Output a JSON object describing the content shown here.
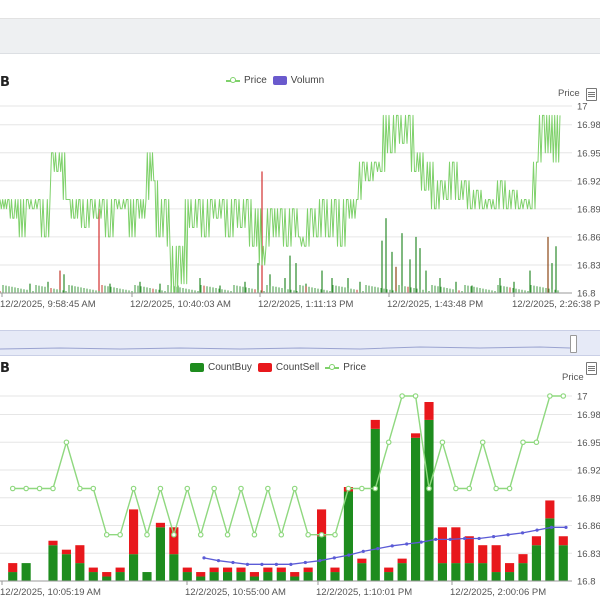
{
  "panels": {
    "top": {
      "title_fragment": "B",
      "price_axis_title": "Price"
    },
    "bottom": {
      "title_fragment": "B",
      "price_axis_title": "Price"
    }
  },
  "chart_data": [
    {
      "type": "line",
      "legend": [
        "Price",
        "Volumn"
      ],
      "legend_position": "top-center",
      "series": [
        {
          "name": "Price",
          "type": "line",
          "color": "#7fd16b"
        },
        {
          "name": "Volumn",
          "type": "bar",
          "color": "#6a5acd"
        }
      ],
      "y_axis": {
        "position": "right",
        "title": "Price",
        "ticks": [
          "17",
          "16.98",
          "16.95",
          "16.92",
          "16.89",
          "16.86",
          "16.83",
          "16.8"
        ],
        "min": 16.8,
        "max": 17
      },
      "x_ticks": [
        "12/2/2025, 9:58:45 AM",
        "12/2/2025, 10:40:03 AM",
        "12/2/2025, 1:11:13 PM",
        "12/2/2025, 1:43:48 PM",
        "12/2/2025, 2:26:38 PM"
      ],
      "price_path": [
        {
          "x": 0,
          "y": 16.9
        },
        {
          "x": 4,
          "y": 16.89
        },
        {
          "x": 9,
          "y": 16.9
        },
        {
          "x": 14,
          "y": 16.88
        },
        {
          "x": 18,
          "y": 16.9
        },
        {
          "x": 22,
          "y": 16.86
        },
        {
          "x": 28,
          "y": 16.9
        },
        {
          "x": 34,
          "y": 16.89
        },
        {
          "x": 40,
          "y": 16.9
        },
        {
          "x": 46,
          "y": 16.86
        },
        {
          "x": 50,
          "y": 16.9
        },
        {
          "x": 53,
          "y": 16.95
        },
        {
          "x": 58,
          "y": 16.93
        },
        {
          "x": 62,
          "y": 16.95
        },
        {
          "x": 66,
          "y": 16.9
        },
        {
          "x": 70,
          "y": 16.9
        },
        {
          "x": 75,
          "y": 16.88
        },
        {
          "x": 80,
          "y": 16.9
        },
        {
          "x": 86,
          "y": 16.87
        },
        {
          "x": 92,
          "y": 16.9
        },
        {
          "x": 98,
          "y": 16.88
        },
        {
          "x": 104,
          "y": 16.9
        },
        {
          "x": 110,
          "y": 16.86
        },
        {
          "x": 116,
          "y": 16.9
        },
        {
          "x": 122,
          "y": 16.89
        },
        {
          "x": 128,
          "y": 16.9
        },
        {
          "x": 132,
          "y": 16.86
        },
        {
          "x": 138,
          "y": 16.9
        },
        {
          "x": 142,
          "y": 16.88
        },
        {
          "x": 146,
          "y": 16.9
        },
        {
          "x": 150,
          "y": 16.95
        },
        {
          "x": 155,
          "y": 16.92
        },
        {
          "x": 160,
          "y": 16.86
        },
        {
          "x": 166,
          "y": 16.9
        },
        {
          "x": 170,
          "y": 16.85
        },
        {
          "x": 175,
          "y": 16.8
        },
        {
          "x": 180,
          "y": 16.85
        },
        {
          "x": 184,
          "y": 16.81
        },
        {
          "x": 188,
          "y": 16.9
        },
        {
          "x": 194,
          "y": 16.87
        },
        {
          "x": 200,
          "y": 16.9
        },
        {
          "x": 206,
          "y": 16.86
        },
        {
          "x": 212,
          "y": 16.9
        },
        {
          "x": 218,
          "y": 16.88
        },
        {
          "x": 224,
          "y": 16.9
        },
        {
          "x": 230,
          "y": 16.86
        },
        {
          "x": 236,
          "y": 16.9
        },
        {
          "x": 242,
          "y": 16.87
        },
        {
          "x": 248,
          "y": 16.9
        },
        {
          "x": 254,
          "y": 16.85
        },
        {
          "x": 258,
          "y": 16.89
        },
        {
          "x": 262,
          "y": 16.83
        },
        {
          "x": 266,
          "y": 16.85
        },
        {
          "x": 272,
          "y": 16.89
        },
        {
          "x": 276,
          "y": 16.86
        },
        {
          "x": 282,
          "y": 16.89
        },
        {
          "x": 288,
          "y": 16.85
        },
        {
          "x": 294,
          "y": 16.89
        },
        {
          "x": 300,
          "y": 16.86
        },
        {
          "x": 306,
          "y": 16.85
        },
        {
          "x": 312,
          "y": 16.89
        },
        {
          "x": 318,
          "y": 16.86
        },
        {
          "x": 324,
          "y": 16.9
        },
        {
          "x": 330,
          "y": 16.86
        },
        {
          "x": 336,
          "y": 16.9
        },
        {
          "x": 342,
          "y": 16.85
        },
        {
          "x": 348,
          "y": 16.9
        },
        {
          "x": 352,
          "y": 16.88
        },
        {
          "x": 358,
          "y": 16.9
        },
        {
          "x": 364,
          "y": 16.94
        },
        {
          "x": 370,
          "y": 16.92
        },
        {
          "x": 376,
          "y": 16.94
        },
        {
          "x": 382,
          "y": 16.93
        },
        {
          "x": 386,
          "y": 16.99
        },
        {
          "x": 392,
          "y": 16.95
        },
        {
          "x": 398,
          "y": 16.99
        },
        {
          "x": 404,
          "y": 16.96
        },
        {
          "x": 410,
          "y": 16.99
        },
        {
          "x": 416,
          "y": 16.93
        },
        {
          "x": 420,
          "y": 16.95
        },
        {
          "x": 426,
          "y": 16.91
        },
        {
          "x": 430,
          "y": 16.94
        },
        {
          "x": 436,
          "y": 16.89
        },
        {
          "x": 442,
          "y": 16.92
        },
        {
          "x": 448,
          "y": 16.9
        },
        {
          "x": 454,
          "y": 16.94
        },
        {
          "x": 460,
          "y": 16.9
        },
        {
          "x": 466,
          "y": 16.92
        },
        {
          "x": 472,
          "y": 16.89
        },
        {
          "x": 478,
          "y": 16.91
        },
        {
          "x": 484,
          "y": 16.89
        },
        {
          "x": 490,
          "y": 16.9
        },
        {
          "x": 496,
          "y": 16.89
        },
        {
          "x": 502,
          "y": 16.92
        },
        {
          "x": 508,
          "y": 16.89
        },
        {
          "x": 514,
          "y": 16.91
        },
        {
          "x": 520,
          "y": 16.89
        },
        {
          "x": 526,
          "y": 16.9
        },
        {
          "x": 532,
          "y": 16.89
        },
        {
          "x": 538,
          "y": 16.94
        },
        {
          "x": 544,
          "y": 16.99
        },
        {
          "x": 548,
          "y": 16.95
        },
        {
          "x": 552,
          "y": 16.99
        },
        {
          "x": 556,
          "y": 16.94
        },
        {
          "x": 560,
          "y": 16.99
        }
      ],
      "volume_spikes": [
        {
          "x": 30,
          "v": 0.05,
          "c": "#2a8a2a"
        },
        {
          "x": 48,
          "v": 0.06,
          "c": "#2a8a2a"
        },
        {
          "x": 60,
          "v": 0.12,
          "c": "#c0392b"
        },
        {
          "x": 64,
          "v": 0.1,
          "c": "#2a8a2a"
        },
        {
          "x": 72,
          "v": 0.04,
          "c": "#2a8a2a"
        },
        {
          "x": 99,
          "v": 0.45,
          "c": "#d32f2f"
        },
        {
          "x": 110,
          "v": 0.05,
          "c": "#2a8a2a"
        },
        {
          "x": 140,
          "v": 0.06,
          "c": "#2a8a2a"
        },
        {
          "x": 160,
          "v": 0.05,
          "c": "#2a8a2a"
        },
        {
          "x": 178,
          "v": 0.04,
          "c": "#2a8a2a"
        },
        {
          "x": 200,
          "v": 0.08,
          "c": "#2a8a2a"
        },
        {
          "x": 220,
          "v": 0.04,
          "c": "#2a8a2a"
        },
        {
          "x": 245,
          "v": 0.06,
          "c": "#2a8a2a"
        },
        {
          "x": 258,
          "v": 0.16,
          "c": "#2a8a2a"
        },
        {
          "x": 262,
          "v": 0.65,
          "c": "#d32f2f"
        },
        {
          "x": 270,
          "v": 0.1,
          "c": "#2a8a2a"
        },
        {
          "x": 285,
          "v": 0.08,
          "c": "#2a8a2a"
        },
        {
          "x": 290,
          "v": 0.2,
          "c": "#2a8a2a"
        },
        {
          "x": 296,
          "v": 0.16,
          "c": "#2a8a2a"
        },
        {
          "x": 306,
          "v": 0.05,
          "c": "#2a8a2a"
        },
        {
          "x": 322,
          "v": 0.12,
          "c": "#2a8a2a"
        },
        {
          "x": 332,
          "v": 0.08,
          "c": "#2a8a2a"
        },
        {
          "x": 348,
          "v": 0.08,
          "c": "#2a8a2a"
        },
        {
          "x": 360,
          "v": 0.06,
          "c": "#2a8a2a"
        },
        {
          "x": 382,
          "v": 0.28,
          "c": "#2a8a2a"
        },
        {
          "x": 386,
          "v": 0.4,
          "c": "#2a8a2a"
        },
        {
          "x": 392,
          "v": 0.22,
          "c": "#2a8a2a"
        },
        {
          "x": 396,
          "v": 0.14,
          "c": "#8b4513"
        },
        {
          "x": 402,
          "v": 0.32,
          "c": "#2a8a2a"
        },
        {
          "x": 410,
          "v": 0.18,
          "c": "#2a8a2a"
        },
        {
          "x": 416,
          "v": 0.3,
          "c": "#2a8a2a"
        },
        {
          "x": 420,
          "v": 0.24,
          "c": "#2a8a2a"
        },
        {
          "x": 426,
          "v": 0.12,
          "c": "#2a8a2a"
        },
        {
          "x": 440,
          "v": 0.08,
          "c": "#2a8a2a"
        },
        {
          "x": 456,
          "v": 0.06,
          "c": "#2a8a2a"
        },
        {
          "x": 472,
          "v": 0.04,
          "c": "#2a8a2a"
        },
        {
          "x": 500,
          "v": 0.08,
          "c": "#2a8a2a"
        },
        {
          "x": 514,
          "v": 0.06,
          "c": "#2a8a2a"
        },
        {
          "x": 530,
          "v": 0.12,
          "c": "#2a8a2a"
        },
        {
          "x": 548,
          "v": 0.3,
          "c": "#8b4513"
        },
        {
          "x": 552,
          "v": 0.16,
          "c": "#2a8a2a"
        },
        {
          "x": 556,
          "v": 0.25,
          "c": "#2a8a2a"
        }
      ]
    },
    {
      "type": "bar",
      "legend": [
        "CountBuy",
        "CountSell",
        "Price"
      ],
      "legend_position": "top-center",
      "series": [
        {
          "name": "CountBuy",
          "type": "bar",
          "color": "#1e8c1e"
        },
        {
          "name": "CountSell",
          "type": "bar",
          "color": "#e8181c"
        },
        {
          "name": "Price",
          "type": "line",
          "color": "#7fd16b"
        }
      ],
      "y_axis": {
        "position": "right",
        "title": "Price",
        "ticks": [
          "17",
          "16.98",
          "16.95",
          "16.92",
          "16.89",
          "16.86",
          "16.83",
          "16.8"
        ],
        "min": 16.8,
        "max": 17
      },
      "x_ticks": [
        "12/2/2025, 10:05:19 AM",
        "12/2/2025, 10:55:00 AM",
        "12/2/2025, 1:10:01 PM",
        "12/2/2025, 2:00:06 PM"
      ],
      "bars": [
        {
          "buy": 1,
          "sell": 1
        },
        {
          "buy": 2,
          "sell": 0
        },
        {
          "buy": 0,
          "sell": 0
        },
        {
          "buy": 4,
          "sell": 0.5
        },
        {
          "buy": 3,
          "sell": 0.5
        },
        {
          "buy": 2,
          "sell": 2
        },
        {
          "buy": 1,
          "sell": 0.5
        },
        {
          "buy": 0.5,
          "sell": 0.5
        },
        {
          "buy": 1,
          "sell": 0.5
        },
        {
          "buy": 3,
          "sell": 5
        },
        {
          "buy": 1,
          "sell": 0
        },
        {
          "buy": 6,
          "sell": 0.5
        },
        {
          "buy": 3,
          "sell": 3
        },
        {
          "buy": 1,
          "sell": 0.5
        },
        {
          "buy": 0.5,
          "sell": 0.5
        },
        {
          "buy": 1,
          "sell": 0.5
        },
        {
          "buy": 1,
          "sell": 0.5
        },
        {
          "buy": 1,
          "sell": 0.5
        },
        {
          "buy": 0.5,
          "sell": 0.5
        },
        {
          "buy": 1,
          "sell": 0.5
        },
        {
          "buy": 1,
          "sell": 0.5
        },
        {
          "buy": 0.5,
          "sell": 0.5
        },
        {
          "buy": 1,
          "sell": 0.5
        },
        {
          "buy": 5,
          "sell": 3
        },
        {
          "buy": 1,
          "sell": 0.5
        },
        {
          "buy": 10,
          "sell": 0.5
        },
        {
          "buy": 2,
          "sell": 0.5
        },
        {
          "buy": 17,
          "sell": 1
        },
        {
          "buy": 1,
          "sell": 0.5
        },
        {
          "buy": 2,
          "sell": 0.5
        },
        {
          "buy": 16,
          "sell": 0.5
        },
        {
          "buy": 18,
          "sell": 2
        },
        {
          "buy": 2,
          "sell": 4
        },
        {
          "buy": 2,
          "sell": 4
        },
        {
          "buy": 2,
          "sell": 3
        },
        {
          "buy": 2,
          "sell": 2
        },
        {
          "buy": 1,
          "sell": 3
        },
        {
          "buy": 1,
          "sell": 1
        },
        {
          "buy": 2,
          "sell": 1
        },
        {
          "buy": 4,
          "sell": 1
        },
        {
          "buy": 7,
          "sell": 2
        },
        {
          "buy": 4,
          "sell": 1
        }
      ],
      "price": [
        16.9,
        16.9,
        16.9,
        16.9,
        16.95,
        16.9,
        16.9,
        16.85,
        16.85,
        16.9,
        16.85,
        16.9,
        16.85,
        16.9,
        16.85,
        16.9,
        16.85,
        16.9,
        16.85,
        16.9,
        16.85,
        16.9,
        16.85,
        16.85,
        16.85,
        16.9,
        16.9,
        16.9,
        16.95,
        17,
        17,
        16.9,
        16.95,
        16.9,
        16.9,
        16.95,
        16.9,
        16.9,
        16.95,
        16.95,
        17,
        17
      ],
      "extra_line": {
        "color": "#5b5bd6",
        "values": [
          16.825,
          16.822,
          16.82,
          16.818,
          16.818,
          16.818,
          16.818,
          16.82,
          16.822,
          16.825,
          16.828,
          16.832,
          16.835,
          16.838,
          16.84,
          16.842,
          16.845,
          16.845,
          16.846,
          16.846,
          16.848,
          16.85,
          16.852,
          16.855,
          16.858,
          16.858
        ]
      }
    }
  ]
}
